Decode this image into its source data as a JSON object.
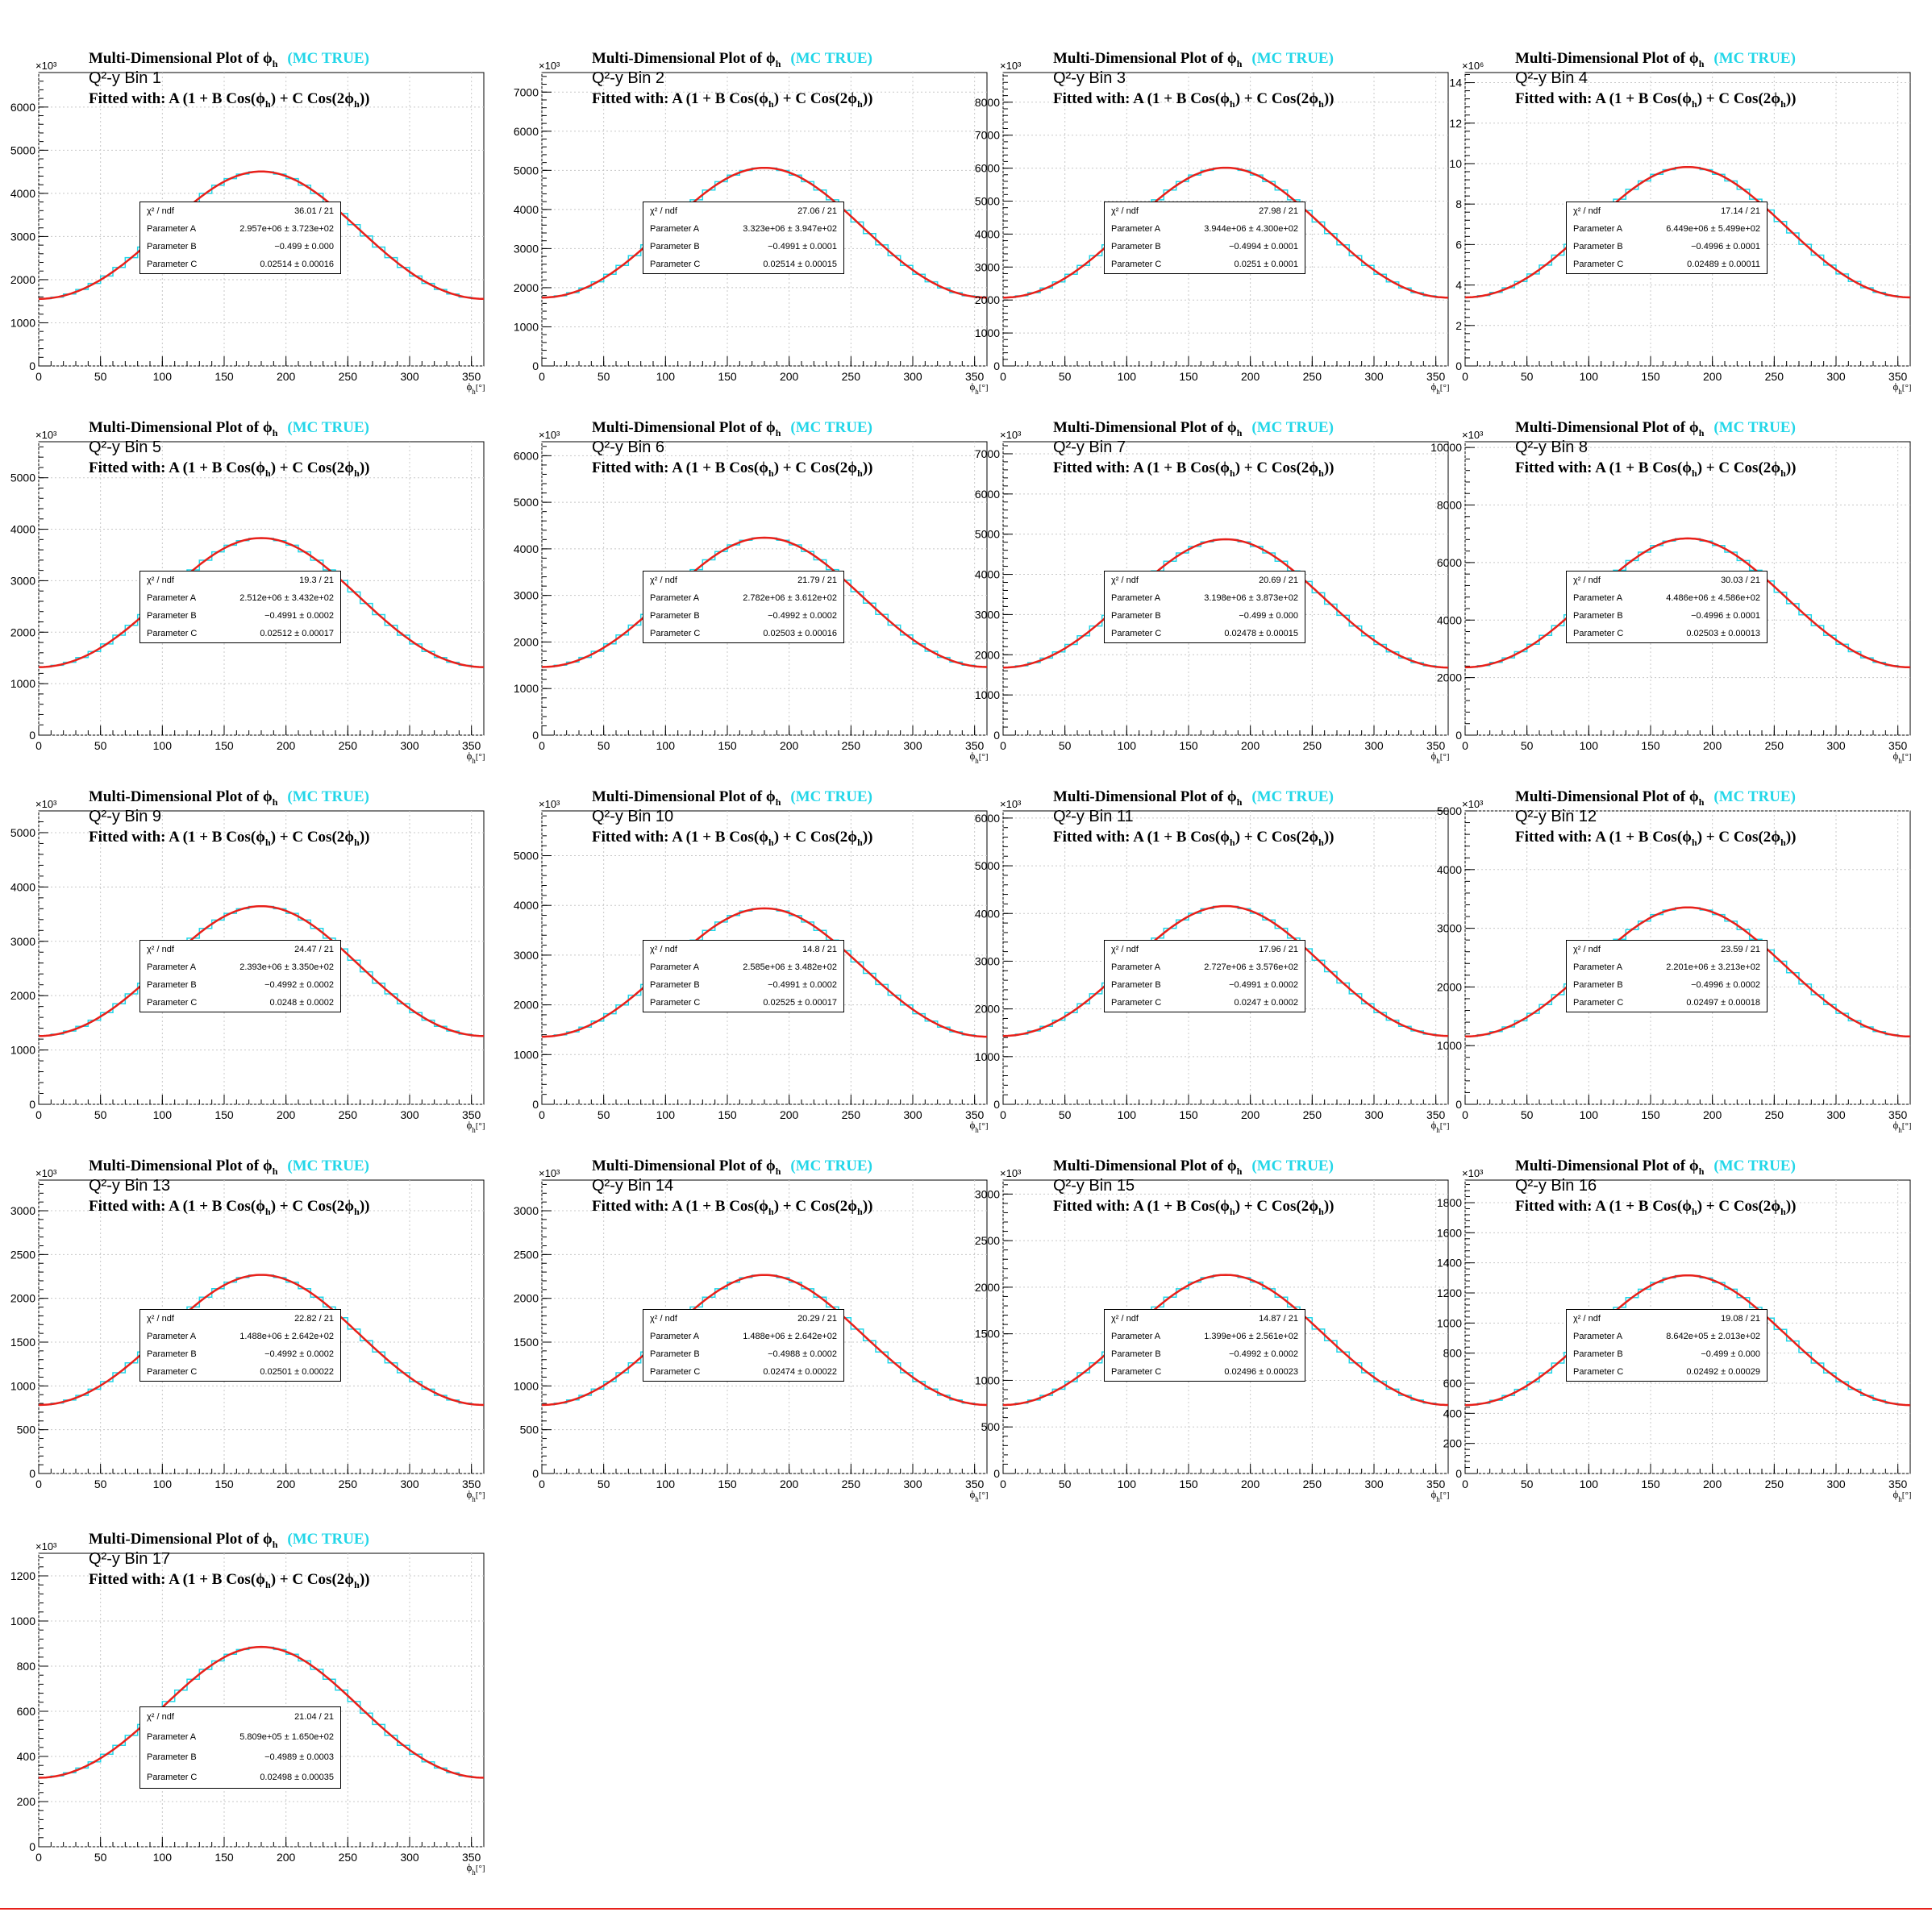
{
  "common": {
    "title_main": "Multi-Dimensional Plot of",
    "title_phi": "ϕ",
    "title_sub": "h",
    "title_mc": "(MC TRUE)",
    "fit_label": "Fitted with: A (1 + B Cos(ϕ",
    "fit_mid": ") + C Cos(2ϕ",
    "fit_end": "))",
    "xlabel_phi": "ϕ",
    "xlabel_sub": "h",
    "xlabel_unit": "[°]",
    "stat_labels": [
      "χ² / ndf",
      "Parameter A",
      "Parameter B",
      "Parameter C"
    ],
    "xticks": [
      0,
      50,
      100,
      150,
      200,
      250,
      300,
      350
    ],
    "colors": {
      "hist": "#22d6e8",
      "fit": "#e8201a",
      "mc": "#22d6e8",
      "grid": "#c8c8c8"
    }
  },
  "chart_data": [
    {
      "type": "line",
      "bin_label": "Q²-y Bin 1",
      "exponent": "×10³",
      "xlim": [
        0,
        360
      ],
      "ylim": [
        0,
        6800
      ],
      "yticks": [
        0,
        1000,
        2000,
        3000,
        4000,
        5000,
        6000
      ],
      "A": 2957,
      "B": -0.499,
      "C": 0.02514,
      "chi2": "36.01 / 21",
      "parA": "2.957e+06 ± 3.723e+02",
      "parB": "−0.499 ± 0.000",
      "parC": "0.02514 ± 0.00016"
    },
    {
      "type": "line",
      "bin_label": "Q²-y Bin 2",
      "exponent": "×10³",
      "xlim": [
        0,
        360
      ],
      "ylim": [
        0,
        7500
      ],
      "yticks": [
        0,
        1000,
        2000,
        3000,
        4000,
        5000,
        6000,
        7000
      ],
      "A": 3323,
      "B": -0.4991,
      "C": 0.02514,
      "chi2": "27.06 / 21",
      "parA": "3.323e+06 ± 3.947e+02",
      "parB": "−0.4991 ± 0.0001",
      "parC": "0.02514 ± 0.00015"
    },
    {
      "type": "line",
      "bin_label": "Q²-y Bin 3",
      "exponent": "×10³",
      "xlim": [
        0,
        360
      ],
      "ylim": [
        0,
        8900
      ],
      "yticks": [
        0,
        1000,
        2000,
        3000,
        4000,
        5000,
        6000,
        7000,
        8000
      ],
      "A": 3944,
      "B": -0.4994,
      "C": 0.0251,
      "chi2": "27.98 / 21",
      "parA": "3.944e+06 ± 4.300e+02",
      "parB": "−0.4994 ± 0.0001",
      "parC": "0.0251 ± 0.0001"
    },
    {
      "type": "line",
      "bin_label": "Q²-y Bin 4",
      "exponent": "×10⁶",
      "xlim": [
        0,
        360
      ],
      "ylim": [
        0,
        14.5
      ],
      "yticks": [
        0,
        2,
        4,
        6,
        8,
        10,
        12,
        14
      ],
      "A": 6.449,
      "B": -0.4996,
      "C": 0.02489,
      "chi2": "17.14 / 21",
      "parA": "6.449e+06 ± 5.499e+02",
      "parB": "−0.4996 ± 0.0001",
      "parC": "0.02489 ± 0.00011"
    },
    {
      "type": "line",
      "bin_label": "Q²-y Bin 5",
      "exponent": "×10³",
      "xlim": [
        0,
        360
      ],
      "ylim": [
        0,
        5700
      ],
      "yticks": [
        0,
        1000,
        2000,
        3000,
        4000,
        5000
      ],
      "A": 2512,
      "B": -0.4991,
      "C": 0.02512,
      "chi2": "19.3 / 21",
      "parA": "2.512e+06 ± 3.432e+02",
      "parB": "−0.4991 ± 0.0002",
      "parC": "0.02512 ± 0.00017"
    },
    {
      "type": "line",
      "bin_label": "Q²-y Bin 6",
      "exponent": "×10³",
      "xlim": [
        0,
        360
      ],
      "ylim": [
        0,
        6300
      ],
      "yticks": [
        0,
        1000,
        2000,
        3000,
        4000,
        5000,
        6000
      ],
      "A": 2782,
      "B": -0.4992,
      "C": 0.02503,
      "chi2": "21.79 / 21",
      "parA": "2.782e+06 ± 3.612e+02",
      "parB": "−0.4992 ± 0.0002",
      "parC": "0.02503 ± 0.00016"
    },
    {
      "type": "line",
      "bin_label": "Q²-y Bin 7",
      "exponent": "×10³",
      "xlim": [
        0,
        360
      ],
      "ylim": [
        0,
        7300
      ],
      "yticks": [
        0,
        1000,
        2000,
        3000,
        4000,
        5000,
        6000,
        7000
      ],
      "A": 3198,
      "B": -0.499,
      "C": 0.02478,
      "chi2": "20.69 / 21",
      "parA": "3.198e+06 ± 3.873e+02",
      "parB": "−0.499 ± 0.000",
      "parC": "0.02478 ± 0.00015"
    },
    {
      "type": "line",
      "bin_label": "Q²-y Bin 8",
      "exponent": "×10³",
      "xlim": [
        0,
        360
      ],
      "ylim": [
        0,
        10200
      ],
      "yticks": [
        0,
        2000,
        4000,
        6000,
        8000,
        10000
      ],
      "A": 4486,
      "B": -0.4996,
      "C": 0.02503,
      "chi2": "30.03 / 21",
      "parA": "4.486e+06 ± 4.586e+02",
      "parB": "−0.4996 ± 0.0001",
      "parC": "0.02503 ± 0.00013"
    },
    {
      "type": "line",
      "bin_label": "Q²-y Bin 9",
      "exponent": "×10³",
      "xlim": [
        0,
        360
      ],
      "ylim": [
        0,
        5400
      ],
      "yticks": [
        0,
        1000,
        2000,
        3000,
        4000,
        5000
      ],
      "A": 2393,
      "B": -0.4992,
      "C": 0.0248,
      "chi2": "24.47 / 21",
      "parA": "2.393e+06 ± 3.350e+02",
      "parB": "−0.4992 ± 0.0002",
      "parC": "0.0248 ± 0.0002"
    },
    {
      "type": "line",
      "bin_label": "Q²-y Bin 10",
      "exponent": "×10³",
      "xlim": [
        0,
        360
      ],
      "ylim": [
        0,
        5900
      ],
      "yticks": [
        0,
        1000,
        2000,
        3000,
        4000,
        5000
      ],
      "A": 2585,
      "B": -0.4991,
      "C": 0.02525,
      "chi2": "14.8 / 21",
      "parA": "2.585e+06 ± 3.482e+02",
      "parB": "−0.4991 ± 0.0002",
      "parC": "0.02525 ± 0.00017"
    },
    {
      "type": "line",
      "bin_label": "Q²-y Bin 11",
      "exponent": "×10³",
      "xlim": [
        0,
        360
      ],
      "ylim": [
        0,
        6150
      ],
      "yticks": [
        0,
        1000,
        2000,
        3000,
        4000,
        5000,
        6000
      ],
      "A": 2727,
      "B": -0.4991,
      "C": 0.0247,
      "chi2": "17.96 / 21",
      "parA": "2.727e+06 ± 3.576e+02",
      "parB": "−0.4991 ± 0.0002",
      "parC": "0.0247 ± 0.0002"
    },
    {
      "type": "line",
      "bin_label": "Q²-y Bin 12",
      "exponent": "×10³",
      "xlim": [
        0,
        360
      ],
      "ylim": [
        0,
        5000
      ],
      "yticks": [
        0,
        1000,
        2000,
        3000,
        4000,
        5000
      ],
      "A": 2201,
      "B": -0.4996,
      "C": 0.02497,
      "chi2": "23.59 / 21",
      "parA": "2.201e+06 ± 3.213e+02",
      "parB": "−0.4996 ± 0.0002",
      "parC": "0.02497 ± 0.00018"
    },
    {
      "type": "line",
      "bin_label": "Q²-y Bin 13",
      "exponent": "×10³",
      "xlim": [
        0,
        360
      ],
      "ylim": [
        0,
        3350
      ],
      "yticks": [
        0,
        500,
        1000,
        1500,
        2000,
        2500,
        3000
      ],
      "A": 1488,
      "B": -0.4992,
      "C": 0.02501,
      "chi2": "22.82 / 21",
      "parA": "1.488e+06 ± 2.642e+02",
      "parB": "−0.4992 ± 0.0002",
      "parC": "0.02501 ± 0.00022"
    },
    {
      "type": "line",
      "bin_label": "Q²-y Bin 14",
      "exponent": "×10³",
      "xlim": [
        0,
        360
      ],
      "ylim": [
        0,
        3350
      ],
      "yticks": [
        0,
        500,
        1000,
        1500,
        2000,
        2500,
        3000
      ],
      "A": 1488,
      "B": -0.4988,
      "C": 0.02474,
      "chi2": "20.29 / 21",
      "parA": "1.488e+06 ± 2.642e+02",
      "parB": "−0.4988 ± 0.0002",
      "parC": "0.02474 ± 0.00022"
    },
    {
      "type": "line",
      "bin_label": "Q²-y Bin 15",
      "exponent": "×10³",
      "xlim": [
        0,
        360
      ],
      "ylim": [
        0,
        3150
      ],
      "yticks": [
        0,
        500,
        1000,
        1500,
        2000,
        2500,
        3000
      ],
      "A": 1399,
      "B": -0.4992,
      "C": 0.02496,
      "chi2": "14.87 / 21",
      "parA": "1.399e+06 ± 2.561e+02",
      "parB": "−0.4992 ± 0.0002",
      "parC": "0.02496 ± 0.00023"
    },
    {
      "type": "line",
      "bin_label": "Q²-y Bin 16",
      "exponent": "×10³",
      "xlim": [
        0,
        360
      ],
      "ylim": [
        0,
        1950
      ],
      "yticks": [
        0,
        200,
        400,
        600,
        800,
        1000,
        1200,
        1400,
        1600,
        1800
      ],
      "A": 864.2,
      "B": -0.499,
      "C": 0.02492,
      "chi2": "19.08 / 21",
      "parA": "8.642e+05 ± 2.013e+02",
      "parB": "−0.499 ± 0.000",
      "parC": "0.02492 ± 0.00029"
    },
    {
      "type": "line",
      "bin_label": "Q²-y Bin 17",
      "exponent": "×10³",
      "xlim": [
        0,
        360
      ],
      "ylim": [
        0,
        1300
      ],
      "yticks": [
        0,
        200,
        400,
        600,
        800,
        1000,
        1200
      ],
      "A": 580.9,
      "B": -0.4989,
      "C": 0.02498,
      "chi2": "21.04 / 21",
      "parA": "5.809e+05 ± 1.650e+02",
      "parB": "−0.4989 ± 0.0003",
      "parC": "0.02498 ± 0.00035"
    }
  ]
}
